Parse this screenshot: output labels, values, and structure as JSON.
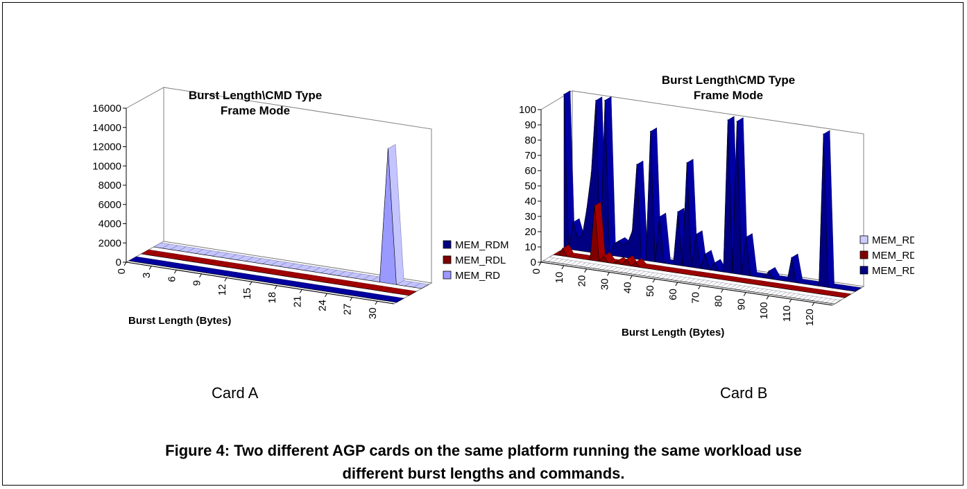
{
  "chart_data": [
    {
      "type": "bar3d",
      "title": "Burst Length\\CMD Type",
      "subtitle": "Frame Mode",
      "xlabel": "Burst Length (Bytes)",
      "xtick_labels": [
        "0",
        "3",
        "6",
        "9",
        "12",
        "15",
        "18",
        "21",
        "24",
        "27",
        "30"
      ],
      "yticks": [
        "0",
        "2000",
        "4000",
        "6000",
        "8000",
        "10000",
        "12000",
        "14000",
        "16000"
      ],
      "ylim": [
        0,
        16000
      ],
      "x": [
        0,
        1,
        2,
        3,
        4,
        5,
        6,
        7,
        8,
        9,
        10,
        11,
        12,
        13,
        14,
        15,
        16,
        17,
        18,
        19,
        20,
        21,
        22,
        23,
        24,
        25,
        26,
        27,
        28,
        29,
        30,
        31,
        32
      ],
      "series": [
        {
          "name": "MEM_RDM",
          "color": "#000080",
          "values": [
            0,
            0,
            0,
            0,
            0,
            0,
            0,
            0,
            0,
            0,
            0,
            0,
            0,
            0,
            0,
            0,
            0,
            0,
            0,
            0,
            0,
            0,
            0,
            0,
            0,
            0,
            0,
            0,
            0,
            0,
            0,
            0,
            0
          ]
        },
        {
          "name": "MEM_RDL",
          "color": "#800000",
          "values": [
            0,
            0,
            0,
            0,
            0,
            0,
            0,
            0,
            0,
            0,
            0,
            0,
            0,
            0,
            0,
            0,
            0,
            0,
            0,
            0,
            0,
            0,
            0,
            0,
            0,
            0,
            0,
            0,
            0,
            0,
            0,
            0,
            0
          ]
        },
        {
          "name": "MEM_RD",
          "color": "#9999FF",
          "values": [
            0,
            0,
            0,
            0,
            0,
            0,
            0,
            0,
            0,
            0,
            0,
            0,
            0,
            0,
            0,
            0,
            0,
            0,
            0,
            0,
            0,
            0,
            0,
            0,
            0,
            0,
            0,
            0,
            14000,
            0,
            0,
            0,
            0
          ]
        }
      ],
      "legend": [
        "MEM_RDM",
        "MEM_RDL",
        "MEM_RD"
      ],
      "legend_position": "right",
      "grid": false
    },
    {
      "type": "area3d",
      "title": "Burst Length\\CMD Type",
      "subtitle": "Frame Mode",
      "xlabel": "Burst Length (Bytes)",
      "xtick_labels": [
        "0",
        "10",
        "20",
        "30",
        "40",
        "50",
        "60",
        "70",
        "80",
        "90",
        "100",
        "110",
        "120"
      ],
      "yticks": [
        "0",
        "10",
        "20",
        "30",
        "40",
        "50",
        "60",
        "70",
        "80",
        "90",
        "100"
      ],
      "ylim": [
        0,
        100
      ],
      "x": [
        0,
        2,
        4,
        6,
        8,
        10,
        12,
        14,
        16,
        18,
        20,
        22,
        24,
        26,
        28,
        30,
        32,
        34,
        36,
        38,
        40,
        42,
        44,
        46,
        48,
        50,
        52,
        54,
        56,
        58,
        60,
        62,
        64,
        66,
        68,
        70,
        72,
        74,
        76,
        78,
        80,
        82,
        84,
        86,
        88,
        90,
        92,
        94,
        96,
        98,
        100,
        102,
        104,
        106,
        108,
        110,
        112,
        114,
        116,
        118,
        120,
        122,
        124,
        126,
        128
      ],
      "series": [
        {
          "name": "MEM_RD",
          "color": "#CCCCFF",
          "values": [
            0,
            0,
            0,
            0,
            0,
            0,
            0,
            0,
            0,
            0,
            0,
            0,
            0,
            0,
            0,
            0,
            0,
            0,
            0,
            0,
            0,
            0,
            0,
            0,
            0,
            0,
            0,
            0,
            0,
            0,
            0,
            0,
            0,
            0,
            0,
            0,
            0,
            0,
            0,
            0,
            0,
            0,
            0,
            0,
            0,
            0,
            0,
            0,
            0,
            0,
            0,
            0,
            0,
            0,
            0,
            0,
            0,
            0,
            0,
            0,
            0,
            0,
            0,
            0,
            0
          ]
        },
        {
          "name": "MEM_RDL",
          "color": "#800000",
          "values": [
            0,
            0,
            5,
            0,
            0,
            0,
            0,
            0,
            0,
            36,
            0,
            4,
            0,
            0,
            2,
            0,
            4,
            0,
            3,
            0,
            0,
            0,
            0,
            0,
            0,
            0,
            0,
            0,
            0,
            0,
            0,
            0,
            0,
            0,
            0,
            0,
            0,
            0,
            0,
            0,
            0,
            0,
            0,
            0,
            0,
            0,
            0,
            0,
            0,
            0,
            0,
            0,
            0,
            0,
            0,
            0,
            0,
            0,
            0,
            0,
            0,
            0,
            0,
            0,
            0
          ]
        },
        {
          "name": "MEM_RDM",
          "color": "#000080",
          "values": [
            101,
            0,
            18,
            8,
            10,
            28,
            52,
            100,
            0,
            101,
            0,
            8,
            10,
            8,
            10,
            18,
            62,
            0,
            0,
            85,
            0,
            30,
            0,
            0,
            0,
            35,
            0,
            68,
            0,
            22,
            0,
            10,
            0,
            5,
            0,
            0,
            100,
            0,
            100,
            0,
            25,
            0,
            0,
            0,
            0,
            5,
            0,
            0,
            0,
            0,
            16,
            0,
            0,
            0,
            0,
            0,
            0,
            100,
            0,
            0,
            0,
            0,
            0,
            0,
            0
          ]
        }
      ],
      "legend": [
        "MEM_RD",
        "MEM_RDL",
        "MEM_RDM"
      ],
      "legend_position": "right",
      "grid": false
    }
  ],
  "labels": {
    "card_a": "Card A",
    "card_b": "Card B"
  },
  "caption": {
    "line1": "Figure 4: Two different AGP cards on the same platform running the same workload use",
    "line2": "different burst lengths and commands."
  }
}
